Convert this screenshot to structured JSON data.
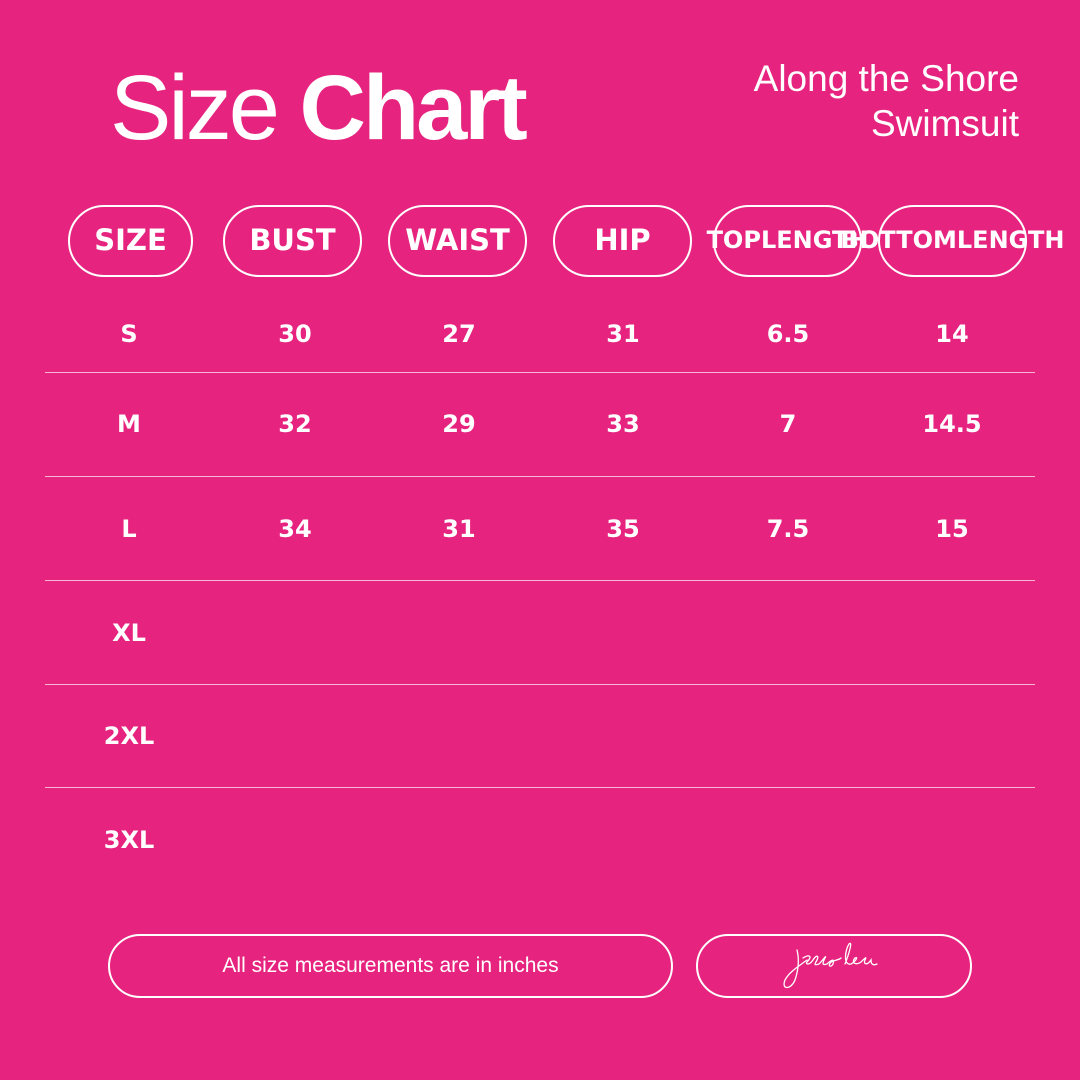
{
  "header": {
    "title_light": "Size",
    "title_bold": "Chart",
    "product_line1": "Along the Shore",
    "product_line2": "Swimsuit"
  },
  "columns": [
    {
      "line1": "SIZE"
    },
    {
      "line1": "BUST"
    },
    {
      "line1": "WAIST"
    },
    {
      "line1": "HIP"
    },
    {
      "line1": "TOP",
      "line2": "LENGTH"
    },
    {
      "line1": "BOTTOM",
      "line2": "LENGTH"
    }
  ],
  "rows": [
    [
      "S",
      "30",
      "27",
      "31",
      "6.5",
      "14"
    ],
    [
      "M",
      "32",
      "29",
      "33",
      "7",
      "14.5"
    ],
    [
      "L",
      "34",
      "31",
      "35",
      "7.5",
      "15"
    ],
    [
      "XL",
      "",
      "",
      "",
      "",
      ""
    ],
    [
      "2XL",
      "",
      "",
      "",
      "",
      ""
    ],
    [
      "3XL",
      "",
      "",
      "",
      "",
      ""
    ]
  ],
  "footer": {
    "note": "All size measurements are in inches",
    "signature": "jess lea"
  },
  "colors": {
    "background": "#E6247F",
    "foreground": "#FFFFFF"
  }
}
